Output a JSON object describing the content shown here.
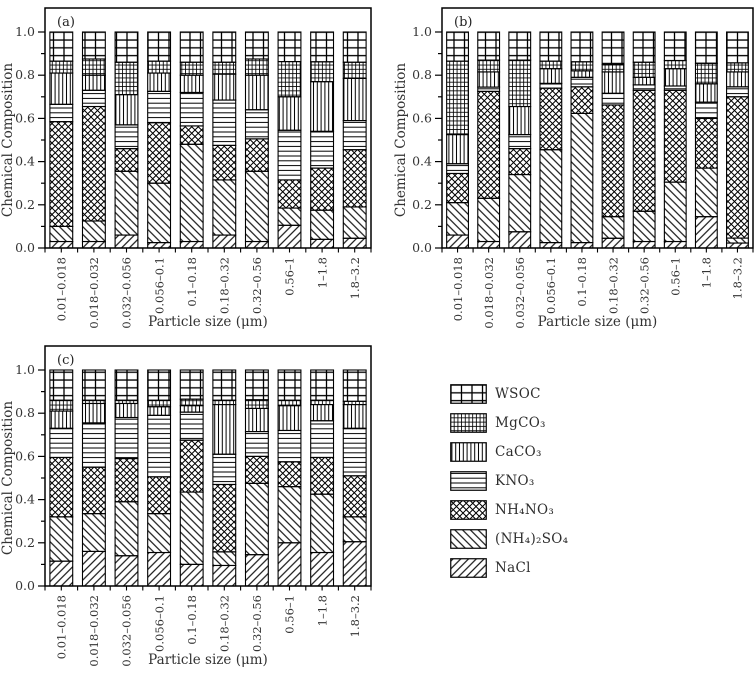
{
  "figure": {
    "background": "#ffffff",
    "line_color": "#000000",
    "text_color": "#333333",
    "ylabel": "Chemical Composition",
    "xlabel": "Particle size (μm)",
    "ytick_labels": [
      "0.0",
      "0.2",
      "0.4",
      "0.6",
      "0.8",
      "1.0"
    ],
    "legend": [
      {
        "label": "WSOC",
        "pattern": "grid-coarse"
      },
      {
        "label": "MgCO₃",
        "pattern": "grid-fine"
      },
      {
        "label": "CaCO₃",
        "pattern": "vert"
      },
      {
        "label": "KNO₃",
        "pattern": "horiz"
      },
      {
        "label": "NH₄NO₃",
        "pattern": "cross-diag"
      },
      {
        "label": "(NH₄)₂SO₄",
        "pattern": "diag-back"
      },
      {
        "label": "NaCl",
        "pattern": "diag-fwd"
      }
    ]
  },
  "chart_data": [
    {
      "type": "bar",
      "stacked": true,
      "normalized": true,
      "panel_label": "(a)",
      "xlabel": "Particle size (μm)",
      "ylabel": "Chemical Composition",
      "ylim": [
        0,
        1.0
      ],
      "yticks": [
        0.0,
        0.2,
        0.4,
        0.6,
        0.8,
        1.0
      ],
      "grid": false,
      "categories": [
        "0.01–0.018",
        "0.018–0.032",
        "0.032–0.056",
        "0.056–0.1",
        "0.1–0.18",
        "0.18–0.32",
        "0.32–0.56",
        "0.56–1",
        "1–1.8",
        "1.8–3.2"
      ],
      "series": [
        {
          "name": "NaCl",
          "pattern": "diag-fwd",
          "values": [
            0.03,
            0.03,
            0.06,
            0.025,
            0.03,
            0.06,
            0.03,
            0.105,
            0.04,
            0.045
          ]
        },
        {
          "name": "(NH₄)₂SO₄",
          "pattern": "diag-back",
          "values": [
            0.07,
            0.095,
            0.295,
            0.275,
            0.45,
            0.255,
            0.325,
            0.08,
            0.135,
            0.145
          ]
        },
        {
          "name": "NH₄NO₃",
          "pattern": "cross-diag",
          "values": [
            0.485,
            0.53,
            0.105,
            0.28,
            0.085,
            0.16,
            0.15,
            0.13,
            0.195,
            0.265
          ]
        },
        {
          "name": "KNO₃",
          "pattern": "horiz",
          "values": [
            0.08,
            0.075,
            0.11,
            0.145,
            0.155,
            0.21,
            0.135,
            0.23,
            0.17,
            0.135
          ]
        },
        {
          "name": "CaCO₃",
          "pattern": "vert",
          "values": [
            0.145,
            0.07,
            0.14,
            0.085,
            0.08,
            0.12,
            0.16,
            0.155,
            0.23,
            0.195
          ]
        },
        {
          "name": "MgCO₃",
          "pattern": "grid-fine",
          "values": [
            0.055,
            0.075,
            0.15,
            0.055,
            0.06,
            0.055,
            0.075,
            0.163,
            0.092,
            0.075
          ]
        },
        {
          "name": "WSOC",
          "pattern": "grid-coarse",
          "values": [
            0.135,
            0.125,
            0.14,
            0.135,
            0.14,
            0.14,
            0.125,
            0.137,
            0.138,
            0.14
          ]
        }
      ]
    },
    {
      "type": "bar",
      "stacked": true,
      "normalized": true,
      "panel_label": "(b)",
      "xlabel": "Particle size (μm)",
      "ylabel": "Chemical Composition",
      "ylim": [
        0,
        1.0
      ],
      "yticks": [
        0.0,
        0.2,
        0.4,
        0.6,
        0.8,
        1.0
      ],
      "grid": false,
      "categories": [
        "0.01–0.018",
        "0.018–0.032",
        "0.032–0.056",
        "0.056–0.1",
        "0.1–0.18",
        "0.18–0.32",
        "0.32–0.56",
        "0.56–1",
        "1–1.8",
        "1.8–3.2"
      ],
      "series": [
        {
          "name": "NaCl",
          "pattern": "diag-fwd",
          "values": [
            0.06,
            0.03,
            0.075,
            0.025,
            0.025,
            0.045,
            0.03,
            0.03,
            0.145,
            0.023
          ]
        },
        {
          "name": "(NH₄)₂SO₄",
          "pattern": "diag-back",
          "values": [
            0.15,
            0.2,
            0.265,
            0.43,
            0.598,
            0.1,
            0.14,
            0.275,
            0.225,
            0.023
          ]
        },
        {
          "name": "NH₄NO₃",
          "pattern": "cross-diag",
          "values": [
            0.135,
            0.495,
            0.12,
            0.285,
            0.123,
            0.517,
            0.56,
            0.425,
            0.23,
            0.654
          ]
        },
        {
          "name": "KNO₃",
          "pattern": "horiz",
          "values": [
            0.045,
            0.02,
            0.065,
            0.022,
            0.044,
            0.054,
            0.025,
            0.02,
            0.075,
            0.046
          ]
        },
        {
          "name": "CaCO₃",
          "pattern": "vert",
          "values": [
            0.135,
            0.07,
            0.13,
            0.068,
            0.03,
            0.099,
            0.035,
            0.08,
            0.085,
            0.069
          ]
        },
        {
          "name": "MgCO₃",
          "pattern": "grid-fine",
          "values": [
            0.34,
            0.055,
            0.215,
            0.035,
            0.042,
            0.035,
            0.07,
            0.038,
            0.095,
            0.042
          ]
        },
        {
          "name": "WSOC",
          "pattern": "grid-coarse",
          "values": [
            0.135,
            0.13,
            0.13,
            0.135,
            0.138,
            0.15,
            0.14,
            0.132,
            0.145,
            0.143
          ]
        }
      ]
    },
    {
      "type": "bar",
      "stacked": true,
      "normalized": true,
      "panel_label": "(c)",
      "xlabel": "Particle size (μm)",
      "ylabel": "Chemical Composition",
      "ylim": [
        0,
        1.0
      ],
      "yticks": [
        0.0,
        0.2,
        0.4,
        0.6,
        0.8,
        1.0
      ],
      "grid": false,
      "categories": [
        "0.01–0.018",
        "0.018–0.032",
        "0.032–0.056",
        "0.056–0.1",
        "0.1–0.18",
        "0.18–0.32",
        "0.32–0.56",
        "0.56–1",
        "1–1.8",
        "1.8–3.2"
      ],
      "series": [
        {
          "name": "NaCl",
          "pattern": "diag-fwd",
          "values": [
            0.115,
            0.16,
            0.14,
            0.155,
            0.1,
            0.095,
            0.145,
            0.2,
            0.155,
            0.205
          ]
        },
        {
          "name": "(NH₄)₂SO₄",
          "pattern": "diag-back",
          "values": [
            0.205,
            0.175,
            0.25,
            0.18,
            0.335,
            0.063,
            0.33,
            0.26,
            0.27,
            0.115
          ]
        },
        {
          "name": "NH₄NO₃",
          "pattern": "cross-diag",
          "values": [
            0.275,
            0.215,
            0.2,
            0.17,
            0.24,
            0.312,
            0.125,
            0.115,
            0.17,
            0.19
          ]
        },
        {
          "name": "KNO₃",
          "pattern": "horiz",
          "values": [
            0.135,
            0.205,
            0.19,
            0.285,
            0.13,
            0.14,
            0.115,
            0.145,
            0.17,
            0.22
          ]
        },
        {
          "name": "CaCO₃",
          "pattern": "vert",
          "values": [
            0.08,
            0.09,
            0.065,
            0.04,
            0.03,
            0.23,
            0.107,
            0.115,
            0.075,
            0.11
          ]
        },
        {
          "name": "MgCO₃",
          "pattern": "grid-fine",
          "values": [
            0.05,
            0.015,
            0.015,
            0.03,
            0.03,
            0.02,
            0.04,
            0.025,
            0.02,
            0.015
          ]
        },
        {
          "name": "WSOC",
          "pattern": "grid-coarse",
          "values": [
            0.14,
            0.14,
            0.14,
            0.14,
            0.135,
            0.14,
            0.138,
            0.14,
            0.14,
            0.145
          ]
        }
      ]
    }
  ]
}
